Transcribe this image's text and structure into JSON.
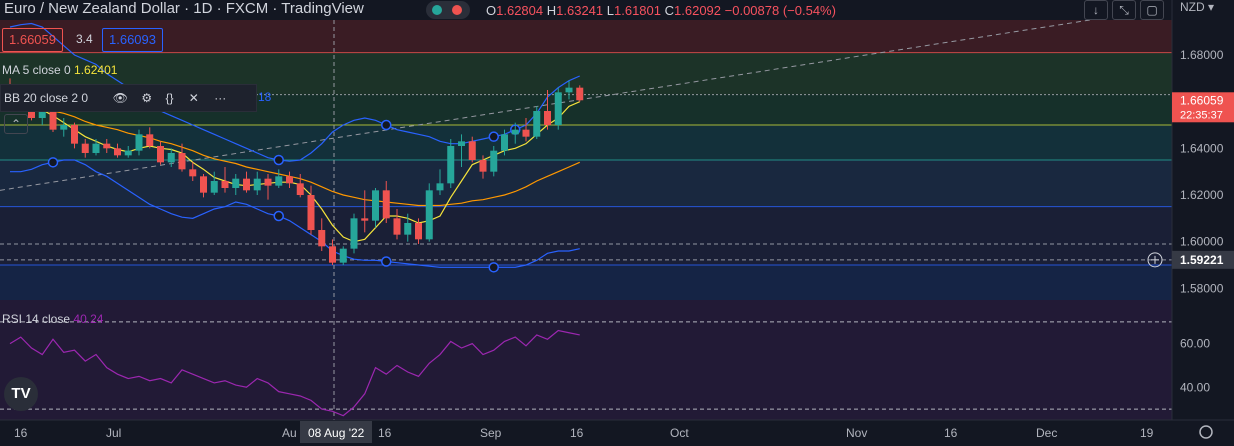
{
  "header": {
    "title": "Euro / New Zealand Dollar · 1D · FXCM · TradingView",
    "ohlc": {
      "o_label": "O",
      "o": "1.62804",
      "h_label": "H",
      "h": "1.63241",
      "l_label": "L",
      "l": "1.61801",
      "c_label": "C",
      "c": "1.62092",
      "change": "−0.00878 (−0.54%)"
    },
    "currency": "NZD",
    "toolbar_icons": [
      "arrow-down-icon",
      "collapse-icon",
      "window-icon"
    ]
  },
  "price_boxes": {
    "bid": "1.66059",
    "spread": "3.4",
    "ask": "1.66093"
  },
  "indicators": {
    "ma_label": "MA 5 close 0",
    "ma_value": "1.62401",
    "bb_label": "BB 20 close 2 0",
    "bb_value": "18",
    "bb_icons": [
      "eye-icon",
      "settings-icon",
      "code-icon",
      "close-icon",
      "more-icon"
    ]
  },
  "price_axis": {
    "ticks": [
      "1.68000",
      "1.64000",
      "1.62000",
      "1.60000",
      "1.58000"
    ],
    "last_price": "1.66059",
    "countdown": "22:35:37",
    "crosshair_price": "1.59221"
  },
  "rsi": {
    "label": "RSI 14 close",
    "value": "40.24",
    "ticks": [
      "60.00",
      "40.00"
    ]
  },
  "time_axis": {
    "labels": [
      "16",
      "Jul",
      "Au",
      "08 Aug '22",
      "16",
      "Sep",
      "16",
      "Oct",
      "Nov",
      "16",
      "Dec",
      "19"
    ]
  },
  "colors": {
    "up": "#26a69a",
    "down": "#ef5350",
    "ma": "#f5e33b",
    "bb_mid": "#ff9800",
    "bb_band": "#2962ff",
    "rsi": "#9c27b0",
    "bg": "#131722"
  },
  "chart_data": {
    "type": "candlestick",
    "title": "Euro / New Zealand Dollar · 1D · FXCM",
    "ylim": [
      1.575,
      1.695
    ],
    "candles": [
      {
        "o": 1.665,
        "h": 1.67,
        "l": 1.661,
        "c": 1.663
      },
      {
        "o": 1.663,
        "h": 1.664,
        "l": 1.658,
        "c": 1.659
      },
      {
        "o": 1.659,
        "h": 1.66,
        "l": 1.652,
        "c": 1.653
      },
      {
        "o": 1.653,
        "h": 1.657,
        "l": 1.65,
        "c": 1.656
      },
      {
        "o": 1.656,
        "h": 1.659,
        "l": 1.647,
        "c": 1.648
      },
      {
        "o": 1.648,
        "h": 1.653,
        "l": 1.645,
        "c": 1.65
      },
      {
        "o": 1.65,
        "h": 1.651,
        "l": 1.64,
        "c": 1.642
      },
      {
        "o": 1.642,
        "h": 1.644,
        "l": 1.636,
        "c": 1.638
      },
      {
        "o": 1.638,
        "h": 1.644,
        "l": 1.637,
        "c": 1.642
      },
      {
        "o": 1.642,
        "h": 1.644,
        "l": 1.638,
        "c": 1.64
      },
      {
        "o": 1.64,
        "h": 1.642,
        "l": 1.636,
        "c": 1.637
      },
      {
        "o": 1.637,
        "h": 1.641,
        "l": 1.636,
        "c": 1.639
      },
      {
        "o": 1.639,
        "h": 1.648,
        "l": 1.637,
        "c": 1.646
      },
      {
        "o": 1.646,
        "h": 1.649,
        "l": 1.64,
        "c": 1.641
      },
      {
        "o": 1.641,
        "h": 1.643,
        "l": 1.633,
        "c": 1.634
      },
      {
        "o": 1.634,
        "h": 1.64,
        "l": 1.632,
        "c": 1.638
      },
      {
        "o": 1.638,
        "h": 1.642,
        "l": 1.63,
        "c": 1.631
      },
      {
        "o": 1.631,
        "h": 1.634,
        "l": 1.626,
        "c": 1.628
      },
      {
        "o": 1.628,
        "h": 1.629,
        "l": 1.619,
        "c": 1.621
      },
      {
        "o": 1.621,
        "h": 1.63,
        "l": 1.62,
        "c": 1.626
      },
      {
        "o": 1.626,
        "h": 1.632,
        "l": 1.621,
        "c": 1.623
      },
      {
        "o": 1.623,
        "h": 1.629,
        "l": 1.62,
        "c": 1.627
      },
      {
        "o": 1.627,
        "h": 1.63,
        "l": 1.621,
        "c": 1.622
      },
      {
        "o": 1.622,
        "h": 1.63,
        "l": 1.62,
        "c": 1.627
      },
      {
        "o": 1.627,
        "h": 1.629,
        "l": 1.618,
        "c": 1.624
      },
      {
        "o": 1.624,
        "h": 1.631,
        "l": 1.623,
        "c": 1.628
      },
      {
        "o": 1.628,
        "h": 1.63,
        "l": 1.623,
        "c": 1.625
      },
      {
        "o": 1.625,
        "h": 1.629,
        "l": 1.619,
        "c": 1.62
      },
      {
        "o": 1.62,
        "h": 1.624,
        "l": 1.603,
        "c": 1.605
      },
      {
        "o": 1.605,
        "h": 1.61,
        "l": 1.596,
        "c": 1.598
      },
      {
        "o": 1.598,
        "h": 1.601,
        "l": 1.59,
        "c": 1.591
      },
      {
        "o": 1.591,
        "h": 1.598,
        "l": 1.59,
        "c": 1.597
      },
      {
        "o": 1.597,
        "h": 1.612,
        "l": 1.595,
        "c": 1.61
      },
      {
        "o": 1.61,
        "h": 1.622,
        "l": 1.604,
        "c": 1.609
      },
      {
        "o": 1.609,
        "h": 1.623,
        "l": 1.606,
        "c": 1.622
      },
      {
        "o": 1.622,
        "h": 1.626,
        "l": 1.608,
        "c": 1.61
      },
      {
        "o": 1.61,
        "h": 1.614,
        "l": 1.601,
        "c": 1.603
      },
      {
        "o": 1.603,
        "h": 1.612,
        "l": 1.6,
        "c": 1.608
      },
      {
        "o": 1.608,
        "h": 1.61,
        "l": 1.599,
        "c": 1.601
      },
      {
        "o": 1.601,
        "h": 1.625,
        "l": 1.6,
        "c": 1.622
      },
      {
        "o": 1.622,
        "h": 1.631,
        "l": 1.62,
        "c": 1.625
      },
      {
        "o": 1.625,
        "h": 1.644,
        "l": 1.623,
        "c": 1.641
      },
      {
        "o": 1.641,
        "h": 1.646,
        "l": 1.632,
        "c": 1.643
      },
      {
        "o": 1.643,
        "h": 1.645,
        "l": 1.634,
        "c": 1.635
      },
      {
        "o": 1.635,
        "h": 1.637,
        "l": 1.627,
        "c": 1.63
      },
      {
        "o": 1.63,
        "h": 1.641,
        "l": 1.628,
        "c": 1.639
      },
      {
        "o": 1.639,
        "h": 1.648,
        "l": 1.637,
        "c": 1.646
      },
      {
        "o": 1.646,
        "h": 1.651,
        "l": 1.642,
        "c": 1.648
      },
      {
        "o": 1.648,
        "h": 1.653,
        "l": 1.643,
        "c": 1.645
      },
      {
        "o": 1.645,
        "h": 1.658,
        "l": 1.644,
        "c": 1.656
      },
      {
        "o": 1.656,
        "h": 1.665,
        "l": 1.648,
        "c": 1.65
      },
      {
        "o": 1.65,
        "h": 1.666,
        "l": 1.648,
        "c": 1.664
      },
      {
        "o": 1.664,
        "h": 1.669,
        "l": 1.661,
        "c": 1.666
      },
      {
        "o": 1.666,
        "h": 1.667,
        "l": 1.66,
        "c": 1.6606
      }
    ],
    "ma5": [
      1.665,
      1.6625,
      1.659,
      1.6565,
      1.654,
      1.651,
      1.648,
      1.645,
      1.643,
      1.641,
      1.6395,
      1.6385,
      1.64,
      1.641,
      1.64,
      1.6395,
      1.638,
      1.634,
      1.631,
      1.6275,
      1.626,
      1.6245,
      1.624,
      1.6245,
      1.625,
      1.6255,
      1.6255,
      1.6245,
      1.62,
      1.614,
      1.607,
      1.602,
      1.6,
      1.601,
      1.606,
      1.611,
      1.611,
      1.61,
      1.608,
      1.609,
      1.611,
      1.619,
      1.626,
      1.633,
      1.635,
      1.637,
      1.639,
      1.64,
      1.642,
      1.646,
      1.65,
      1.653,
      1.658,
      1.66
    ],
    "bb_mid": [
      1.656,
      1.6565,
      1.657,
      1.6565,
      1.656,
      1.655,
      1.6535,
      1.6515,
      1.65,
      1.649,
      1.648,
      1.6465,
      1.6455,
      1.6445,
      1.643,
      1.642,
      1.6405,
      1.639,
      1.637,
      1.6355,
      1.6345,
      1.6335,
      1.632,
      1.631,
      1.63,
      1.629,
      1.628,
      1.627,
      1.6255,
      1.6235,
      1.6215,
      1.62,
      1.619,
      1.618,
      1.6175,
      1.617,
      1.6165,
      1.616,
      1.6155,
      1.6155,
      1.6155,
      1.616,
      1.6165,
      1.6175,
      1.618,
      1.619,
      1.62,
      1.6215,
      1.6235,
      1.626,
      1.628,
      1.63,
      1.632,
      1.634
    ],
    "bb_upper": [
      1.692,
      1.693,
      1.6935,
      1.692,
      1.688,
      1.684,
      1.68,
      1.678,
      1.676,
      1.672,
      1.669,
      1.666,
      1.662,
      1.659,
      1.656,
      1.654,
      1.652,
      1.65,
      1.648,
      1.646,
      1.644,
      1.642,
      1.64,
      1.638,
      1.636,
      1.635,
      1.6345,
      1.635,
      1.638,
      1.642,
      1.647,
      1.65,
      1.652,
      1.653,
      1.652,
      1.65,
      1.648,
      1.647,
      1.646,
      1.645,
      1.643,
      1.642,
      1.642,
      1.643,
      1.644,
      1.645,
      1.646,
      1.648,
      1.65,
      1.655,
      1.662,
      1.666,
      1.669,
      1.671
    ],
    "bb_lower": [
      1.63,
      1.63,
      1.631,
      1.633,
      1.634,
      1.635,
      1.635,
      1.633,
      1.63,
      1.628,
      1.625,
      1.622,
      1.619,
      1.616,
      1.614,
      1.612,
      1.6105,
      1.61,
      1.612,
      1.614,
      1.615,
      1.617,
      1.616,
      1.614,
      1.612,
      1.611,
      1.609,
      1.606,
      1.603,
      1.6,
      1.596,
      1.594,
      1.5925,
      1.592,
      1.592,
      1.5915,
      1.591,
      1.5905,
      1.59,
      1.5895,
      1.589,
      1.589,
      1.589,
      1.589,
      1.589,
      1.589,
      1.589,
      1.589,
      1.59,
      1.592,
      1.595,
      1.596,
      1.596,
      1.597
    ],
    "h_levels": [
      1.681,
      1.663,
      1.65,
      1.635,
      1.615,
      1.599,
      1.5922,
      1.59
    ],
    "rsi_ylim": [
      25,
      80
    ],
    "rsi_levels": [
      70,
      30
    ],
    "rsi_values": [
      60,
      63,
      58,
      55,
      62,
      56,
      57,
      52,
      55,
      49,
      46,
      44,
      45,
      43,
      44,
      42,
      48,
      46,
      44,
      42,
      43,
      41,
      40,
      44,
      42,
      38,
      37,
      36,
      34,
      30,
      29,
      27,
      31,
      37,
      49,
      46,
      50,
      47,
      45,
      51,
      55,
      61,
      58,
      60,
      55,
      57,
      61,
      63,
      59,
      64,
      62,
      66,
      65,
      64
    ]
  }
}
